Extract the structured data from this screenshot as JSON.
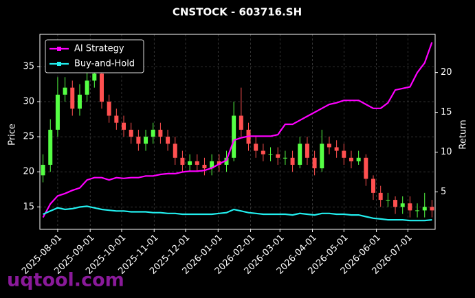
{
  "chart_data": {
    "type": "candlestick",
    "title": "CNSTOCK - 603716.SH",
    "ylabel": "Price",
    "y2label": "Return",
    "watermark": "uqtool.com",
    "x": [
      "2025-07-18",
      "2025-07-25",
      "2025-08-01",
      "2025-08-08",
      "2025-08-15",
      "2025-08-22",
      "2025-08-29",
      "2025-09-05",
      "2025-09-12",
      "2025-09-19",
      "2025-09-26",
      "2025-10-03",
      "2025-10-10",
      "2025-10-17",
      "2025-10-24",
      "2025-10-31",
      "2025-11-07",
      "2025-11-14",
      "2025-11-21",
      "2025-11-28",
      "2025-12-05",
      "2025-12-12",
      "2025-12-19",
      "2025-12-26",
      "2026-01-02",
      "2026-01-09",
      "2026-01-16",
      "2026-01-23",
      "2026-01-30",
      "2026-02-06",
      "2026-02-13",
      "2026-02-20",
      "2026-02-27",
      "2026-03-06",
      "2026-03-13",
      "2026-03-20",
      "2026-03-27",
      "2026-04-03",
      "2026-04-10",
      "2026-04-17",
      "2026-04-24",
      "2026-05-01",
      "2026-05-08",
      "2026-05-15",
      "2026-05-22",
      "2026-05-29",
      "2026-06-05",
      "2026-06-12",
      "2026-06-19",
      "2026-06-26",
      "2026-07-03",
      "2026-07-10",
      "2026-07-17",
      "2026-07-24"
    ],
    "open": [
      19.5,
      21,
      26,
      31,
      32,
      29,
      31,
      33,
      34,
      30,
      28,
      27,
      26,
      25,
      24,
      25,
      26,
      25,
      24,
      22,
      21,
      21.5,
      21,
      20.5,
      21.5,
      21,
      22,
      28,
      26,
      24,
      23,
      22.5,
      22.5,
      22,
      22,
      21,
      24,
      22,
      20.5,
      24,
      23.5,
      23,
      22,
      21.5,
      22,
      19,
      17,
      16,
      16,
      15,
      15.5,
      14.5,
      14.5,
      15
    ],
    "high": [
      22.5,
      27.5,
      33.5,
      33.5,
      33,
      32.5,
      34.5,
      36,
      35,
      31,
      29,
      28,
      27,
      26,
      26,
      27,
      27,
      26,
      25,
      23,
      22.5,
      22.5,
      22,
      22.5,
      22.5,
      23,
      30,
      32,
      27,
      25,
      24,
      23.5,
      23.5,
      23,
      23,
      25,
      25,
      23,
      26,
      25,
      24.5,
      24,
      23,
      23,
      22.5,
      19.5,
      18,
      17,
      16.5,
      16.5,
      16.5,
      15.5,
      17,
      16
    ],
    "low": [
      18.5,
      20,
      25,
      30,
      28,
      28,
      30,
      32,
      29,
      27,
      26,
      25,
      24,
      23,
      23,
      24,
      24,
      23,
      21,
      20,
      20,
      20,
      19.5,
      19.5,
      20,
      20,
      21.5,
      25,
      23,
      22,
      21.5,
      21.5,
      21,
      21,
      20,
      20.5,
      21,
      19.5,
      20,
      22.5,
      22,
      21,
      20.5,
      21,
      18,
      16,
      15,
      15,
      14,
      14,
      13.5,
      13.5,
      13.5,
      13.5
    ],
    "close": [
      21,
      26,
      31,
      32,
      29,
      31,
      33,
      34,
      30,
      28,
      27,
      26,
      25,
      24,
      25,
      26,
      25,
      24,
      22,
      21,
      21.5,
      21,
      20.5,
      21.5,
      21,
      22,
      28,
      26,
      24,
      23,
      22.5,
      22.5,
      22,
      22,
      21,
      24,
      22,
      20.5,
      24,
      23.5,
      23,
      22,
      21.5,
      22,
      19,
      17,
      16,
      16,
      15,
      15.5,
      14.5,
      14.5,
      15,
      14.5
    ],
    "up_color": "#55ff44",
    "down_color": "#ff5050",
    "series": [
      {
        "name": "AI Strategy",
        "color": "#ff00ff",
        "axis": "y2",
        "values": [
          1.8,
          3.5,
          4.5,
          4.8,
          5.2,
          5.5,
          6.5,
          6.8,
          6.8,
          6.5,
          6.8,
          6.7,
          6.8,
          6.8,
          7.0,
          7.0,
          7.2,
          7.3,
          7.3,
          7.5,
          7.6,
          7.6,
          7.7,
          8.0,
          8.5,
          9.0,
          11.5,
          11.8,
          12.0,
          12.0,
          12.0,
          12.0,
          12.2,
          13.5,
          13.5,
          14.0,
          14.5,
          15.0,
          15.5,
          16.0,
          16.2,
          16.5,
          16.5,
          16.5,
          16.0,
          15.5,
          15.5,
          16.2,
          17.8,
          18.0,
          18.2,
          20.0,
          21.2,
          23.8
        ]
      },
      {
        "name": "Buy-and-Hold",
        "color": "#22eeee",
        "axis": "y2",
        "values": [
          2.2,
          2.6,
          3.0,
          2.8,
          2.9,
          3.1,
          3.2,
          3.0,
          2.8,
          2.7,
          2.6,
          2.6,
          2.5,
          2.5,
          2.5,
          2.4,
          2.4,
          2.3,
          2.3,
          2.2,
          2.2,
          2.2,
          2.2,
          2.2,
          2.3,
          2.4,
          2.8,
          2.6,
          2.4,
          2.3,
          2.2,
          2.2,
          2.2,
          2.2,
          2.1,
          2.3,
          2.2,
          2.1,
          2.3,
          2.3,
          2.2,
          2.2,
          2.1,
          2.1,
          1.9,
          1.7,
          1.6,
          1.5,
          1.5,
          1.5,
          1.4,
          1.4,
          1.4,
          1.5
        ]
      }
    ],
    "xlim": [
      "2025-07-15",
      "2026-07-27"
    ],
    "xticks": [
      "2025-08-01",
      "2025-09-01",
      "2025-10-01",
      "2025-11-01",
      "2025-12-01",
      "2026-01-01",
      "2026-02-01",
      "2026-03-01",
      "2026-04-01",
      "2026-05-01",
      "2026-06-01",
      "2026-07-01"
    ],
    "ylim": [
      11.8,
      39.6
    ],
    "yticks": [
      15,
      20,
      25,
      30,
      35
    ],
    "y2lim": [
      0.3,
      24.8
    ],
    "y2ticks": [
      5,
      10,
      15,
      20
    ],
    "grid": true,
    "legend": "upper left"
  }
}
